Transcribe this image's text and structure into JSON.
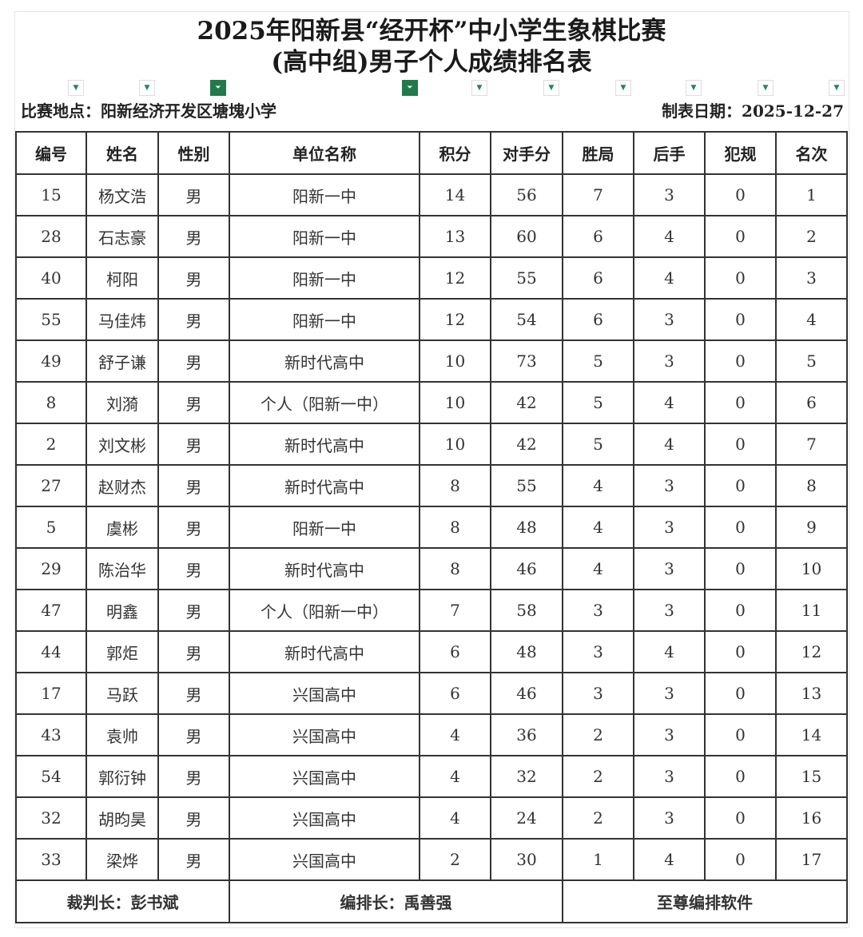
{
  "title_line1": "2025年阳新县“经开杯”中小学生象棋比赛",
  "title_line2": "(高中组)男子个人成绩排名表",
  "venue": "比赛地点：阳新经济开发区塘塊小学",
  "date": "制表日期：2025-12-27",
  "filter_buttons": [
    {
      "icon": "dropdown-arrow-icon",
      "active": false
    },
    {
      "icon": "dropdown-arrow-icon",
      "active": false
    },
    {
      "icon": "filter-icon",
      "active": true
    },
    {
      "icon": "filter-icon",
      "active": true
    },
    {
      "icon": "dropdown-arrow-icon",
      "active": false
    },
    {
      "icon": "dropdown-arrow-icon",
      "active": false
    },
    {
      "icon": "dropdown-arrow-icon",
      "active": false
    },
    {
      "icon": "dropdown-arrow-icon",
      "active": false
    },
    {
      "icon": "dropdown-arrow-icon",
      "active": false
    },
    {
      "icon": "dropdown-arrow-icon",
      "active": false
    }
  ],
  "filter_active_color": "#217a4c",
  "headers": [
    "编号",
    "姓名",
    "性别",
    "单位名称",
    "积分",
    "对手分",
    "胜局",
    "后手",
    "犯规",
    "名次"
  ],
  "rows": [
    [
      "15",
      "杨文浩",
      "男",
      "阳新一中",
      "14",
      "56",
      "7",
      "3",
      "0",
      "1"
    ],
    [
      "28",
      "石志豪",
      "男",
      "阳新一中",
      "13",
      "60",
      "6",
      "4",
      "0",
      "2"
    ],
    [
      "40",
      "柯阳",
      "男",
      "阳新一中",
      "12",
      "55",
      "6",
      "4",
      "0",
      "3"
    ],
    [
      "55",
      "马佳炜",
      "男",
      "阳新一中",
      "12",
      "54",
      "6",
      "3",
      "0",
      "4"
    ],
    [
      "49",
      "舒子谦",
      "男",
      "新时代高中",
      "10",
      "73",
      "5",
      "3",
      "0",
      "5"
    ],
    [
      "8",
      "刘漪",
      "男",
      "个人（阳新一中）",
      "10",
      "42",
      "5",
      "4",
      "0",
      "6"
    ],
    [
      "2",
      "刘文彬",
      "男",
      "新时代高中",
      "10",
      "42",
      "5",
      "4",
      "0",
      "7"
    ],
    [
      "27",
      "赵财杰",
      "男",
      "新时代高中",
      "8",
      "55",
      "4",
      "3",
      "0",
      "8"
    ],
    [
      "5",
      "虞彬",
      "男",
      "阳新一中",
      "8",
      "48",
      "4",
      "3",
      "0",
      "9"
    ],
    [
      "29",
      "陈治华",
      "男",
      "新时代高中",
      "8",
      "46",
      "4",
      "3",
      "0",
      "10"
    ],
    [
      "47",
      "明鑫",
      "男",
      "个人（阳新一中）",
      "7",
      "58",
      "3",
      "3",
      "0",
      "11"
    ],
    [
      "44",
      "郭炬",
      "男",
      "新时代高中",
      "6",
      "48",
      "3",
      "4",
      "0",
      "12"
    ],
    [
      "17",
      "马跃",
      "男",
      "兴国高中",
      "6",
      "46",
      "3",
      "3",
      "0",
      "13"
    ],
    [
      "43",
      "袁帅",
      "男",
      "兴国高中",
      "4",
      "36",
      "2",
      "3",
      "0",
      "14"
    ],
    [
      "54",
      "郭衍钟",
      "男",
      "兴国高中",
      "4",
      "32",
      "2",
      "3",
      "0",
      "15"
    ],
    [
      "32",
      "胡昀昊",
      "男",
      "兴国高中",
      "4",
      "24",
      "2",
      "3",
      "0",
      "16"
    ],
    [
      "33",
      "梁烨",
      "男",
      "兴国高中",
      "2",
      "30",
      "1",
      "4",
      "0",
      "17"
    ]
  ],
  "footer": {
    "chief_referee": "裁判长：彭书斌",
    "chief_arbiter": "编排长：禹善强",
    "software": "至尊编排软件"
  }
}
